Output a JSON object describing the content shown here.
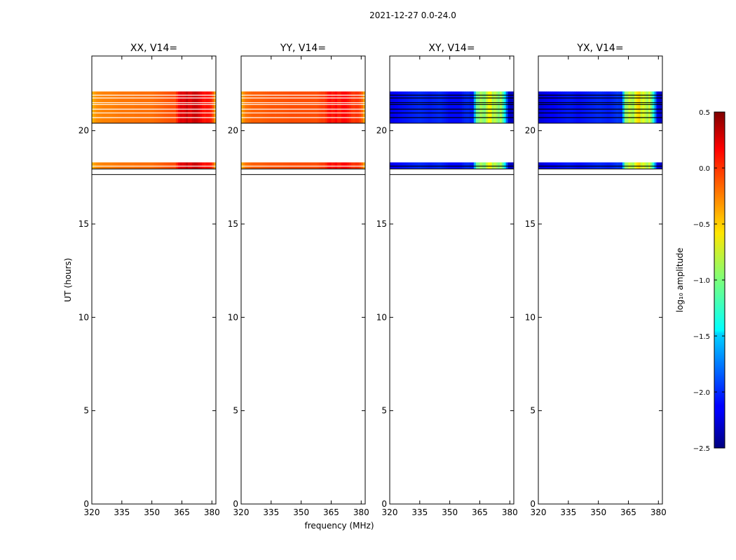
{
  "figure": {
    "suptitle": "2021-12-27 0.0-24.0",
    "xlabel": "frequency (MHz)",
    "ylabel": "UT (hours)",
    "colorbar_label": "log₁₀ amplitude",
    "colorbar_ticks": [
      "0.5",
      "0.0",
      "−0.5",
      "−1.0",
      "−1.5",
      "−2.0",
      "−2.5"
    ]
  },
  "chart_data": {
    "type": "heatmap",
    "colormap": "jet",
    "xlim": [
      320,
      382
    ],
    "ylim": [
      0,
      24
    ],
    "xticks": [
      320,
      335,
      350,
      365,
      380
    ],
    "yticks": [
      0,
      5,
      10,
      15,
      20
    ],
    "clim": [
      -2.5,
      0.5
    ],
    "colorbar_tick_values": [
      0.5,
      0.0,
      -0.5,
      -1.0,
      -1.5,
      -2.0,
      -2.5
    ],
    "time_blocks": [
      {
        "t_start": 17.95,
        "t_end": 18.3,
        "gaps": [
          18.1
        ]
      },
      {
        "t_start": 20.4,
        "t_end": 22.1,
        "gaps": [
          20.7,
          20.95,
          21.15,
          21.4,
          21.5,
          21.75,
          21.9
        ]
      }
    ],
    "panels": [
      {
        "title": "XX, V14=",
        "kind": "parallel",
        "spectrum": {
          "freq": [
            320,
            322,
            326,
            330,
            335,
            340,
            345,
            350,
            355,
            358,
            360,
            361,
            362,
            363,
            364,
            365,
            366,
            367,
            368,
            369,
            370,
            372,
            374,
            376,
            378,
            380,
            381,
            382
          ],
          "log_amp": [
            -0.45,
            -0.3,
            -0.25,
            -0.25,
            -0.22,
            -0.22,
            -0.2,
            -0.2,
            -0.15,
            -0.12,
            -0.1,
            -0.1,
            -0.1,
            0.1,
            0.2,
            0.25,
            0.15,
            0.3,
            0.28,
            0.15,
            0.25,
            0.3,
            0.2,
            0.05,
            0.1,
            0.0,
            -0.2,
            -0.5
          ]
        }
      },
      {
        "title": "YY, V14=",
        "kind": "parallel",
        "spectrum": {
          "freq": [
            320,
            322,
            326,
            330,
            335,
            340,
            345,
            350,
            355,
            358,
            360,
            361,
            362,
            363,
            364,
            365,
            366,
            367,
            368,
            369,
            370,
            372,
            374,
            376,
            378,
            380,
            381,
            382
          ],
          "log_amp": [
            -0.45,
            -0.22,
            -0.15,
            -0.15,
            -0.12,
            -0.12,
            -0.1,
            -0.1,
            -0.1,
            -0.1,
            -0.05,
            -0.05,
            -0.05,
            0.05,
            0.1,
            0.1,
            0.0,
            0.15,
            0.1,
            0.0,
            0.1,
            0.12,
            0.05,
            -0.05,
            0.0,
            -0.1,
            -0.25,
            -0.5
          ]
        }
      },
      {
        "title": "XY, V14=",
        "kind": "cross",
        "spectrum": {
          "freq": [
            320,
            325,
            330,
            335,
            340,
            345,
            350,
            355,
            358,
            360,
            361,
            362,
            363,
            364,
            365,
            366,
            367,
            368,
            369,
            370,
            371,
            372,
            373,
            374,
            375,
            376,
            377,
            378,
            379,
            380,
            382
          ],
          "log_amp": [
            -2.2,
            -2.1,
            -2.05,
            -2.0,
            -2.05,
            -2.0,
            -2.1,
            -2.1,
            -2.0,
            -2.0,
            -2.1,
            -2.0,
            -1.2,
            -0.9,
            -1.1,
            -0.6,
            -1.3,
            -0.7,
            -0.9,
            -0.4,
            -0.8,
            -1.0,
            -0.6,
            -1.2,
            -0.8,
            -0.9,
            -1.3,
            -1.5,
            -2.2,
            -2.3,
            -2.3
          ]
        }
      },
      {
        "title": "YX, V14=",
        "kind": "cross",
        "spectrum": {
          "freq": [
            320,
            325,
            330,
            335,
            340,
            345,
            350,
            355,
            358,
            360,
            361,
            362,
            363,
            364,
            365,
            366,
            367,
            368,
            369,
            370,
            371,
            372,
            373,
            374,
            375,
            376,
            377,
            378,
            379,
            380,
            382
          ],
          "log_amp": [
            -2.25,
            -2.15,
            -2.1,
            -2.05,
            -2.1,
            -2.05,
            -2.0,
            -2.05,
            -2.0,
            -1.95,
            -2.0,
            -2.0,
            -1.1,
            -0.8,
            -1.0,
            -0.5,
            -1.2,
            -0.6,
            -0.8,
            -0.3,
            -0.7,
            -0.9,
            -0.5,
            -1.1,
            -0.7,
            -0.8,
            -1.2,
            -1.4,
            -2.1,
            -2.25,
            -2.3
          ]
        }
      }
    ]
  }
}
